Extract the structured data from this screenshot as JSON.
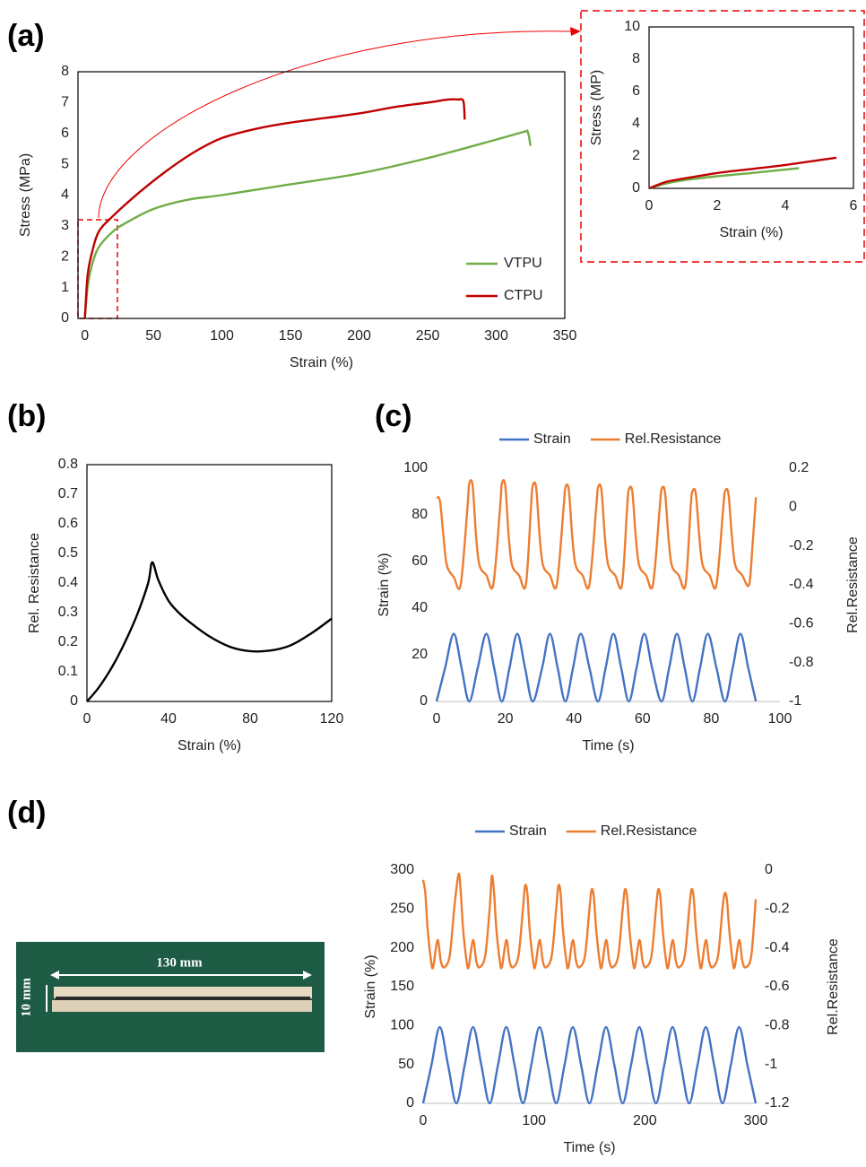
{
  "chart_data": [
    {
      "type": "line",
      "panel_label": "(a)",
      "x_label": "Strain (%)",
      "y_label": "Stress (MPa)",
      "xlim": [
        -5,
        350
      ],
      "xticks": [
        0,
        50,
        100,
        150,
        200,
        250,
        300,
        350
      ],
      "ylim": [
        0,
        8
      ],
      "yticks": [
        0,
        1,
        2,
        3,
        4,
        5,
        6,
        7,
        8
      ],
      "frame": true,
      "legend": "lower right",
      "series": [
        {
          "name": "VTPU",
          "color": "#70ad47",
          "x": [
            0,
            2,
            5,
            10,
            20,
            30,
            50,
            75,
            100,
            150,
            200,
            250,
            300,
            320,
            323,
            325
          ],
          "values": [
            0,
            1,
            1.7,
            2.3,
            2.8,
            3.1,
            3.55,
            3.85,
            4.0,
            4.35,
            4.7,
            5.2,
            5.8,
            6.05,
            6.05,
            5.6
          ]
        },
        {
          "name": "CTPU",
          "color": "#c00000",
          "x": [
            0,
            2,
            5,
            10,
            20,
            40,
            60,
            80,
            100,
            125,
            150,
            200,
            225,
            250,
            265,
            272,
            276,
            277
          ],
          "values": [
            0,
            1.4,
            2.1,
            2.8,
            3.3,
            4.1,
            4.8,
            5.4,
            5.85,
            6.15,
            6.35,
            6.65,
            6.85,
            7.0,
            7.1,
            7.1,
            7.05,
            6.45
          ]
        }
      ]
    },
    {
      "type": "line",
      "x_label": "Strain (%)",
      "y_label": "Stress (MP)",
      "xlim": [
        0,
        6
      ],
      "xticks": [
        0,
        2,
        4,
        6
      ],
      "ylim": [
        0,
        10
      ],
      "yticks": [
        0,
        2,
        4,
        6,
        8,
        10
      ],
      "frame": true,
      "series": [
        {
          "color": "#70ad47",
          "x": [
            0,
            0.5,
            1,
            2,
            3,
            4.4
          ],
          "values": [
            0,
            0.3,
            0.5,
            0.75,
            0.95,
            1.25
          ]
        },
        {
          "color": "#c00000",
          "x": [
            0,
            0.5,
            1,
            2,
            3,
            4,
            5.5
          ],
          "values": [
            0,
            0.4,
            0.6,
            0.95,
            1.2,
            1.45,
            1.9
          ]
        }
      ]
    },
    {
      "type": "line",
      "panel_label": "(b)",
      "x_label": "Strain (%)",
      "y_label": "Rel. Resistance",
      "xlim": [
        0,
        120
      ],
      "xticks": [
        0,
        40,
        80,
        120
      ],
      "ylim": [
        0,
        0.8
      ],
      "yticks": [
        0,
        0.1,
        0.2,
        0.3,
        0.4,
        0.5,
        0.6,
        0.7,
        0.8
      ],
      "frame": true,
      "series": [
        {
          "color": "#000000",
          "x": [
            0,
            5,
            10,
            15,
            20,
            25,
            30,
            32,
            35,
            40,
            45,
            50,
            60,
            70,
            80,
            90,
            100,
            110,
            120
          ],
          "values": [
            0,
            0.04,
            0.09,
            0.15,
            0.22,
            0.3,
            0.4,
            0.47,
            0.41,
            0.34,
            0.3,
            0.27,
            0.22,
            0.185,
            0.17,
            0.172,
            0.19,
            0.23,
            0.28
          ]
        }
      ]
    },
    {
      "type": "line",
      "panel_label": "(c)",
      "x_label": "Time (s)",
      "y_label": "Strain (%)",
      "y2_label": "Rel.Resistance",
      "xlim": [
        0,
        100
      ],
      "xticks": [
        0,
        20,
        40,
        60,
        80,
        100
      ],
      "ylim": [
        0,
        100
      ],
      "yticks": [
        0,
        20,
        40,
        60,
        80,
        100
      ],
      "y2lim": [
        -1,
        0.2
      ],
      "y2ticks": [
        -1,
        -0.8,
        -0.6,
        -0.4,
        -0.2,
        0,
        0.2
      ],
      "frame": false,
      "legend": "top",
      "series": [
        {
          "name": "Strain",
          "color": "#4472c4",
          "x": [
            0,
            2.5,
            5,
            7.25,
            9.5,
            12,
            14.5,
            16.75,
            19,
            21.25,
            23.5,
            25.75,
            28,
            30.75,
            33,
            35.25,
            37.5,
            39.75,
            42,
            44.5,
            47,
            49.25,
            51.5,
            53.75,
            56,
            58.25,
            60.5,
            62.75,
            65.5,
            67.75,
            70,
            72.25,
            74.5,
            76.75,
            79,
            81.5,
            84,
            86.25,
            88.5,
            90.75,
            93
          ],
          "values": [
            0,
            14.5,
            29,
            14.5,
            0,
            14.5,
            29,
            14.5,
            0,
            14.5,
            29,
            14.5,
            0,
            14.5,
            29,
            14.5,
            0,
            14.5,
            29,
            14.5,
            0,
            14.5,
            29,
            14.5,
            0,
            14.5,
            29,
            14.5,
            0,
            14.5,
            29,
            14.5,
            0,
            14.5,
            29,
            14.5,
            0,
            14.5,
            29,
            14.5,
            0
          ]
        },
        {
          "name": "Rel.Resistance",
          "color": "#ed7d31",
          "axis": "y2",
          "x": [
            0,
            1,
            2,
            3,
            5,
            7,
            9,
            9.5,
            10.5,
            11.5,
            12.5,
            14.5,
            16.5,
            18.5,
            19,
            20,
            21,
            22,
            24,
            26,
            27.5,
            28,
            29,
            30,
            31,
            33,
            35,
            37,
            37.5,
            38.5,
            39.5,
            40.5,
            42.5,
            44.5,
            46.5,
            47,
            48,
            49,
            50,
            52,
            54,
            55.5,
            56,
            57,
            58,
            59,
            61,
            63,
            65,
            65.5,
            66.5,
            67.5,
            68.5,
            70.5,
            72.5,
            74,
            74.5,
            75.5,
            76.5,
            77.5,
            79.5,
            81.5,
            83.5,
            84,
            85,
            86,
            87,
            89,
            91,
            92,
            93
          ],
          "values": [
            0.05,
            0.03,
            -0.15,
            -0.3,
            -0.36,
            -0.4,
            0,
            0.12,
            0.11,
            -0.15,
            -0.3,
            -0.35,
            -0.4,
            0,
            0.12,
            0.11,
            -0.15,
            -0.3,
            -0.35,
            -0.4,
            0,
            0.11,
            0.1,
            -0.15,
            -0.3,
            -0.35,
            -0.4,
            0,
            0.1,
            0.09,
            -0.15,
            -0.3,
            -0.35,
            -0.4,
            0,
            0.1,
            0.09,
            -0.15,
            -0.3,
            -0.35,
            -0.4,
            0,
            0.09,
            0.08,
            -0.15,
            -0.3,
            -0.35,
            -0.4,
            0,
            0.09,
            0.08,
            -0.15,
            -0.3,
            -0.35,
            -0.4,
            0,
            0.08,
            0.07,
            -0.15,
            -0.3,
            -0.35,
            -0.4,
            0,
            0.08,
            0.07,
            -0.15,
            -0.3,
            -0.35,
            -0.4,
            -0.2,
            0.05
          ]
        }
      ]
    },
    {
      "type": "line",
      "panel_label": "(d)",
      "x_label": "Time (s)",
      "y_label": "Strain (%)",
      "y2_label": "Rel.Resistance",
      "xlim": [
        0,
        300
      ],
      "xticks": [
        0,
        100,
        200,
        300
      ],
      "ylim": [
        0,
        300
      ],
      "yticks": [
        0,
        50,
        100,
        150,
        200,
        250,
        300
      ],
      "y2lim": [
        -1.2,
        0
      ],
      "y2ticks": [
        -1.2,
        -1,
        -0.8,
        -0.6,
        -0.4,
        -0.2,
        0
      ],
      "frame": false,
      "legend": "top",
      "series": [
        {
          "name": "Strain",
          "color": "#4472c4",
          "x": [
            0,
            7.5,
            15,
            22.5,
            30,
            37.5,
            45,
            52.5,
            60,
            67.5,
            75,
            82.5,
            90,
            97.5,
            105,
            112.5,
            120,
            127.5,
            135,
            142.5,
            150,
            157.5,
            165,
            172.5,
            180,
            187.5,
            195,
            202.5,
            210,
            217.5,
            225,
            232.5,
            240,
            247.5,
            255,
            262.5,
            270,
            277.5,
            285,
            292.5,
            300
          ],
          "values": [
            0,
            49,
            98,
            49,
            0,
            49,
            98,
            49,
            0,
            49,
            98,
            49,
            0,
            49,
            98,
            49,
            0,
            49,
            98,
            49,
            0,
            49,
            98,
            49,
            0,
            49,
            98,
            49,
            0,
            49,
            98,
            49,
            0,
            49,
            98,
            49,
            0,
            49,
            98,
            49,
            0
          ]
        },
        {
          "name": "Rel.Resistance",
          "color": "#ed7d31",
          "axis": "y2",
          "x": [
            0,
            2,
            4,
            7,
            9,
            13,
            16,
            19,
            24,
            28,
            32,
            34,
            36,
            39,
            41,
            45,
            48,
            51,
            56,
            60,
            62,
            64,
            66,
            69,
            71,
            75,
            78,
            81,
            86,
            90,
            92,
            94,
            96,
            99,
            101,
            105,
            108,
            111,
            116,
            120,
            122,
            124,
            126,
            129,
            131,
            135,
            138,
            141,
            146,
            150,
            152,
            154,
            156,
            159,
            161,
            165,
            168,
            171,
            176,
            180,
            182,
            184,
            186,
            189,
            191,
            195,
            198,
            201,
            206,
            210,
            212,
            214,
            216,
            219,
            221,
            225,
            228,
            231,
            236,
            240,
            242,
            244,
            246,
            249,
            251,
            255,
            258,
            261,
            266,
            270,
            272,
            274,
            276,
            279,
            281,
            285,
            288,
            291,
            296,
            300
          ],
          "values": [
            -0.05,
            -0.12,
            -0.3,
            -0.46,
            -0.5,
            -0.36,
            -0.47,
            -0.5,
            -0.44,
            -0.2,
            -0.02,
            -0.12,
            -0.3,
            -0.46,
            -0.5,
            -0.36,
            -0.47,
            -0.5,
            -0.44,
            -0.2,
            -0.03,
            -0.12,
            -0.3,
            -0.46,
            -0.5,
            -0.36,
            -0.47,
            -0.5,
            -0.44,
            -0.2,
            -0.08,
            -0.12,
            -0.3,
            -0.46,
            -0.5,
            -0.36,
            -0.47,
            -0.5,
            -0.44,
            -0.2,
            -0.08,
            -0.12,
            -0.3,
            -0.46,
            -0.5,
            -0.36,
            -0.47,
            -0.5,
            -0.44,
            -0.2,
            -0.1,
            -0.14,
            -0.3,
            -0.46,
            -0.5,
            -0.36,
            -0.47,
            -0.5,
            -0.44,
            -0.2,
            -0.1,
            -0.14,
            -0.3,
            -0.46,
            -0.5,
            -0.36,
            -0.47,
            -0.5,
            -0.44,
            -0.2,
            -0.1,
            -0.14,
            -0.3,
            -0.46,
            -0.5,
            -0.36,
            -0.47,
            -0.5,
            -0.44,
            -0.2,
            -0.1,
            -0.14,
            -0.3,
            -0.46,
            -0.5,
            -0.36,
            -0.47,
            -0.5,
            -0.44,
            -0.2,
            -0.12,
            -0.15,
            -0.3,
            -0.46,
            -0.5,
            -0.36,
            -0.47,
            -0.5,
            -0.44,
            -0.15
          ]
        }
      ]
    }
  ],
  "photo": {
    "length_label": "130 mm",
    "width_label": "10 mm"
  }
}
